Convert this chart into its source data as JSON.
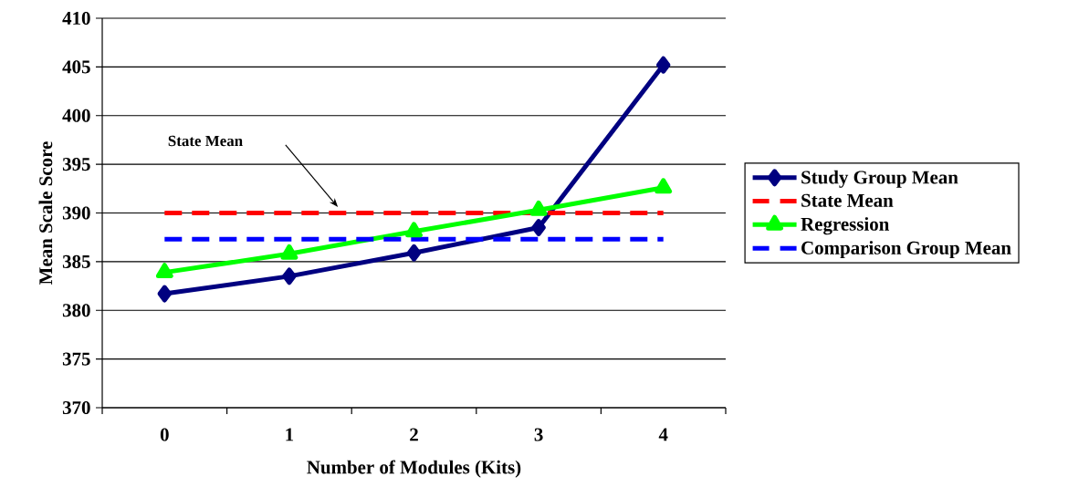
{
  "chart_data": {
    "type": "line",
    "xlabel": "Number of Modules (Kits)",
    "ylabel": "Mean Scale Score",
    "categories": [
      "0",
      "1",
      "2",
      "3",
      "4"
    ],
    "series": [
      {
        "name": "Study Group Mean",
        "color": "#000080",
        "values": [
          381.7,
          383.5,
          385.9,
          388.5,
          405.2
        ],
        "marker": "diamond",
        "line_style": "solid"
      },
      {
        "name": "State Mean",
        "color": "#ff0000",
        "values": [
          390,
          390,
          390,
          390,
          390
        ],
        "marker": "none",
        "line_style": "dashed"
      },
      {
        "name": "Regression",
        "color": "#00ff00",
        "values": [
          383.9,
          385.8,
          388.1,
          390.3,
          392.6
        ],
        "marker": "triangle",
        "line_style": "solid"
      },
      {
        "name": "Comparison Group Mean",
        "color": "#0000ff",
        "values": [
          387.3,
          387.3,
          387.3,
          387.3,
          387.3
        ],
        "marker": "none",
        "line_style": "dashed"
      }
    ],
    "ylim": [
      370,
      410
    ],
    "yticks": [
      370,
      375,
      380,
      385,
      390,
      395,
      400,
      405,
      410
    ],
    "grid": "y",
    "legend": "right",
    "annotations": [
      "State Mean"
    ]
  }
}
